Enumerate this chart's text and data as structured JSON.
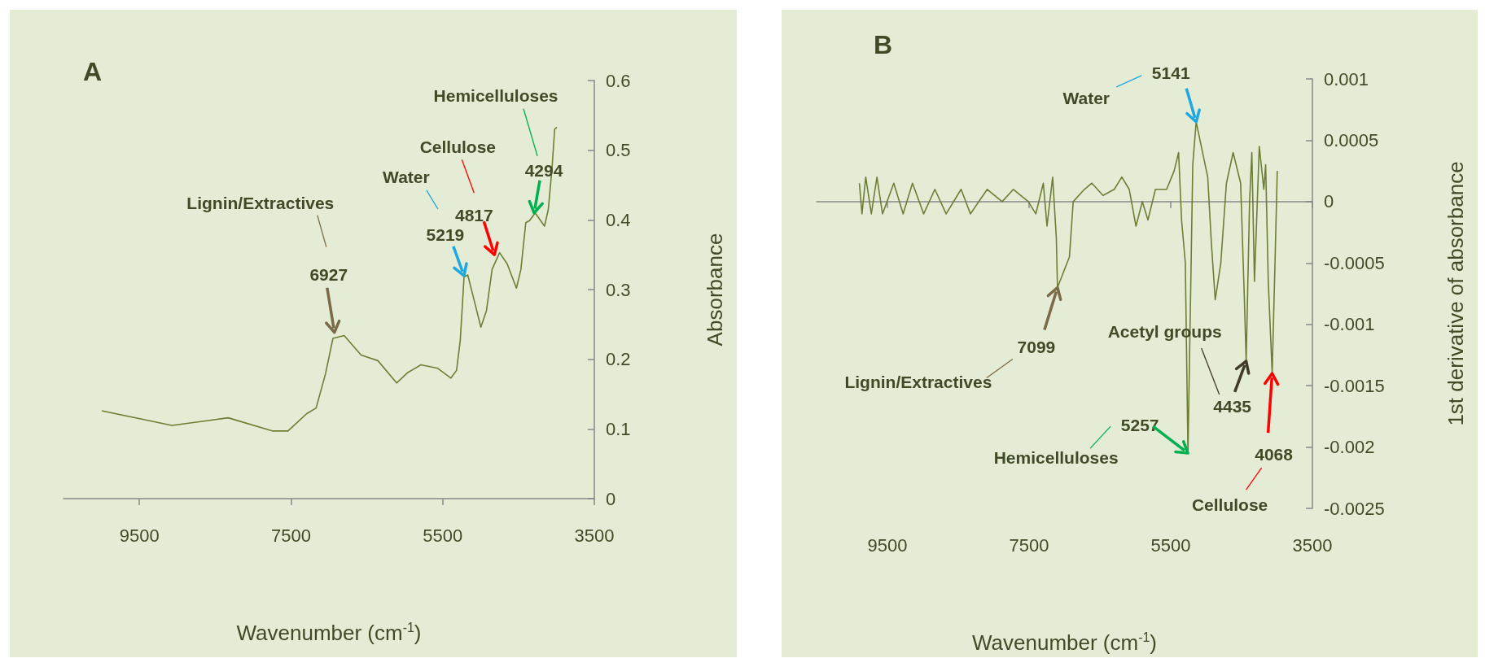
{
  "chart_data": [
    {
      "type": "line",
      "title": "A",
      "xlabel": "Wavenumber (cm$^{-1}$)",
      "ylabel": "Absorbance",
      "color": "#6b7f34",
      "x": [
        9994,
        9070,
        8329,
        7737,
        7540,
        7292,
        7169,
        7045,
        6947,
        6799,
        6576,
        6354,
        6107,
        5959,
        5786,
        5564,
        5391,
        5317,
        5268,
        5218,
        5169,
        5095,
        4996,
        4922,
        4848,
        4749,
        4650,
        4527,
        4468,
        4404,
        4354,
        4280,
        4157,
        4107,
        4058,
        4023,
        3994
      ],
      "values": [
        0.126,
        0.105,
        0.116,
        0.097,
        0.097,
        0.122,
        0.13,
        0.179,
        0.23,
        0.234,
        0.206,
        0.198,
        0.166,
        0.181,
        0.192,
        0.187,
        0.173,
        0.184,
        0.227,
        0.318,
        0.321,
        0.289,
        0.246,
        0.27,
        0.329,
        0.353,
        0.337,
        0.302,
        0.329,
        0.396,
        0.399,
        0.41,
        0.391,
        0.415,
        0.474,
        0.53,
        0.533
      ],
      "xlim": [
        10500,
        3500
      ],
      "xticks": [
        9500,
        7500,
        5500,
        3500
      ],
      "ylim": [
        0,
        0.6
      ],
      "yticks": [
        0,
        0.1,
        0.2,
        0.3,
        0.4,
        0.5,
        0.6
      ],
      "annotations": [
        "Lignin/Extractives",
        {
          "text": "6927",
          "x": 6927,
          "y": 0.235
        },
        "Water",
        {
          "text": "5219",
          "x": 5219,
          "y": 0.32
        },
        "Cellulose",
        {
          "text": "4817",
          "x": 4817,
          "y": 0.35
        },
        "Hemicelluloses",
        {
          "text": "4294",
          "x": 4294,
          "y": 0.41
        }
      ]
    },
    {
      "type": "line",
      "title": "B",
      "xlabel": "Wavenumber (cm$^{-1}$)",
      "ylabel": "1st derivative of absorbance",
      "color": "#6b7f34",
      "x": [
        9896,
        9859,
        9806,
        9727,
        9648,
        9569,
        9410,
        9278,
        9146,
        8988,
        8830,
        8671,
        8460,
        8328,
        8091,
        7880,
        7722,
        7510,
        7405,
        7299,
        7247,
        7167,
        7115,
        7099,
        6930,
        6877,
        6719,
        6614,
        6456,
        6297,
        6191,
        6086,
        5991,
        5901,
        5822,
        5716,
        5558,
        5452,
        5389,
        5347,
        5294,
        5257,
        5189,
        5141,
        4978,
        4925,
        4872,
        4793,
        4714,
        4619,
        4513,
        4460,
        4435,
        4387,
        4355,
        4318,
        4250,
        4186,
        4160,
        4123,
        4068,
        4028,
        3996
      ],
      "values": [
        0.00015,
        -0.0001,
        0.0002,
        -0.0001,
        0.0002,
        -0.0001,
        0.00015,
        -0.0001,
        0.00015,
        -0.0001,
        0.0001,
        -0.0001,
        0.0001,
        -0.0001,
        0.0001,
        0,
        0.0001,
        0,
        -0.0001,
        0.00015,
        -0.0002,
        0.0002,
        -0.0003,
        -0.0007,
        -0.00045,
        0,
        0.0001,
        0.00015,
        5e-05,
        0.0001,
        0.0002,
        0.0001,
        -0.0002,
        0,
        -0.00015,
        0.0001,
        0.0001,
        0.00025,
        0.0004,
        -0.00015,
        -0.0005,
        -0.00205,
        0.0003,
        0.00065,
        0.0002,
        -0.00035,
        -0.0008,
        -0.0005,
        0.00015,
        0.0004,
        0.00015,
        -0.0008,
        -0.0013,
        0,
        0.0004,
        -0.00065,
        0.00045,
        0.0001,
        0.0003,
        -0.00065,
        -0.0014,
        -0.0005,
        0.00025
      ],
      "xlim": [
        10500,
        3500
      ],
      "xticks": [
        9500,
        7500,
        5500,
        3500
      ],
      "ylim": [
        -0.0025,
        0.001
      ],
      "yticks": [
        -0.0025,
        -0.002,
        -0.0015,
        -0.001,
        -0.0005,
        0,
        0.0005,
        0.001
      ],
      "annotations": [
        "Lignin/Extractives",
        {
          "text": "7099",
          "x": 7099,
          "y": -0.0007
        },
        "Hemicelluloses",
        {
          "text": "5257",
          "x": 5257,
          "y": -0.00205
        },
        "Water",
        {
          "text": "5141",
          "x": 5141,
          "y": 0.00065
        },
        "Acetyl groups",
        {
          "text": "4435",
          "x": 4435,
          "y": -0.0013
        },
        "Cellulose",
        {
          "text": "4068",
          "x": 4068,
          "y": -0.0014
        }
      ]
    }
  ]
}
